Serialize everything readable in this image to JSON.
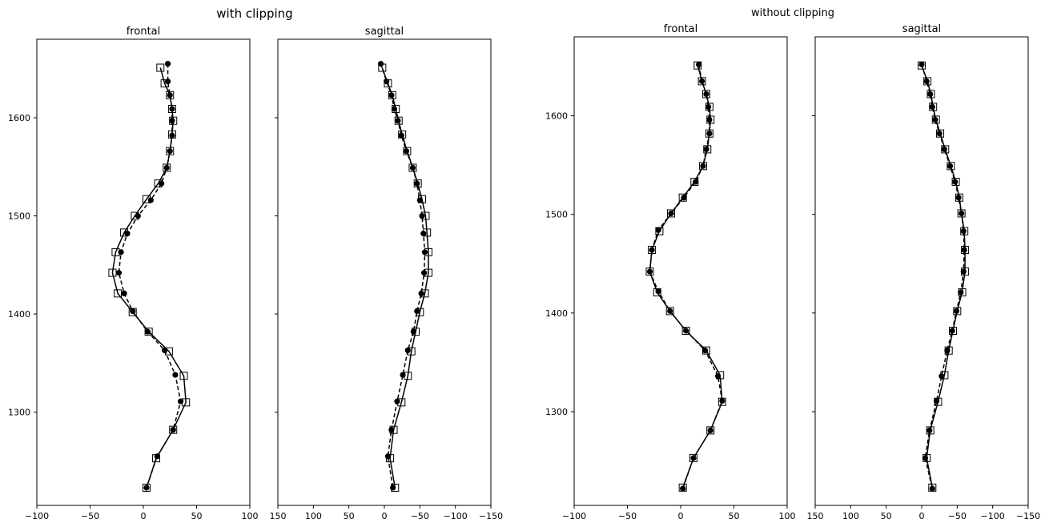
{
  "figure": {
    "groups": [
      {
        "title": "with clipping"
      },
      {
        "title": "without clipping"
      }
    ]
  },
  "chart_data": [
    {
      "type": "line",
      "group": "with clipping",
      "title": "frontal",
      "xlim": [
        -100,
        100
      ],
      "ylim": [
        1205,
        1680
      ],
      "xticks": [
        -100,
        -50,
        0,
        50,
        100
      ],
      "xtick_labels": [
        "−100",
        "−50",
        "0",
        "50",
        "100"
      ],
      "yticks": [
        1300,
        1400,
        1500,
        1600
      ],
      "ytick_labels": [
        "1300",
        "1400",
        "1500",
        "1600"
      ],
      "x_inverted": false,
      "grid": false,
      "legend": "none",
      "series": [
        {
          "marker": "open-square",
          "line": "solid",
          "x": [
            16,
            20,
            25,
            27,
            28,
            27,
            25,
            22,
            14,
            3,
            -8,
            -18,
            -26,
            -29,
            -24,
            -10,
            5,
            24,
            38,
            40,
            28,
            12,
            3
          ],
          "y": [
            1651,
            1635,
            1623,
            1609,
            1597,
            1583,
            1566,
            1549,
            1533,
            1517,
            1500,
            1483,
            1463,
            1442,
            1421,
            1402,
            1382,
            1362,
            1337,
            1310,
            1282,
            1253,
            1223
          ]
        },
        {
          "marker": "filled-circle",
          "line": "dashed",
          "x": [
            23,
            23,
            25,
            27,
            27,
            27,
            25,
            22,
            17,
            7,
            -5,
            -15,
            -21,
            -23,
            -18,
            -10,
            4,
            20,
            30,
            35,
            28,
            13,
            3
          ],
          "y": [
            1655,
            1637,
            1623,
            1609,
            1597,
            1582,
            1566,
            1549,
            1533,
            1516,
            1500,
            1482,
            1463,
            1442,
            1421,
            1403,
            1382,
            1363,
            1338,
            1311,
            1282,
            1255,
            1223
          ]
        }
      ]
    },
    {
      "type": "line",
      "group": "with clipping",
      "title": "sagittal",
      "xlim": [
        150,
        -150
      ],
      "ylim": [
        1205,
        1680
      ],
      "xticks": [
        150,
        100,
        50,
        0,
        -50,
        -100,
        -150
      ],
      "xtick_labels": [
        "150",
        "100",
        "50",
        "0",
        "−50",
        "−100",
        "−150"
      ],
      "yticks": [
        1300,
        1400,
        1500,
        1600
      ],
      "ytick_labels": [
        "",
        "",
        "",
        ""
      ],
      "x_inverted": true,
      "grid": false,
      "legend": "none",
      "series": [
        {
          "marker": "open-square",
          "line": "solid",
          "x": [
            3,
            -5,
            -11,
            -16,
            -20,
            -25,
            -32,
            -40,
            -47,
            -53,
            -58,
            -60,
            -62,
            -62,
            -57,
            -50,
            -44,
            -38,
            -33,
            -24,
            -13,
            -8,
            -15
          ],
          "y": [
            1651,
            1635,
            1623,
            1609,
            1597,
            1583,
            1566,
            1549,
            1533,
            1517,
            1500,
            1483,
            1463,
            1442,
            1421,
            1402,
            1382,
            1362,
            1337,
            1310,
            1282,
            1253,
            1223
          ]
        },
        {
          "marker": "filled-circle",
          "line": "dashed",
          "x": [
            5,
            -3,
            -10,
            -14,
            -19,
            -24,
            -31,
            -40,
            -46,
            -50,
            -53,
            -55,
            -57,
            -56,
            -52,
            -46,
            -41,
            -33,
            -26,
            -18,
            -10,
            -5,
            -12
          ],
          "y": [
            1655,
            1637,
            1623,
            1609,
            1597,
            1582,
            1566,
            1549,
            1533,
            1516,
            1500,
            1482,
            1463,
            1442,
            1421,
            1403,
            1382,
            1363,
            1338,
            1311,
            1282,
            1255,
            1223
          ]
        }
      ]
    },
    {
      "type": "line",
      "group": "without clipping",
      "title": "frontal",
      "xlim": [
        -100,
        100
      ],
      "ylim": [
        1205,
        1680
      ],
      "xticks": [
        -100,
        -50,
        0,
        50,
        100
      ],
      "xtick_labels": [
        "−100",
        "−50",
        "0",
        "50",
        "100"
      ],
      "yticks": [
        1300,
        1400,
        1500,
        1600
      ],
      "ytick_labels": [
        "1300",
        "1400",
        "1500",
        "1600"
      ],
      "x_inverted": false,
      "grid": false,
      "legend": "none",
      "series": [
        {
          "marker": "open-square",
          "line": "solid",
          "x": [
            16,
            20,
            24,
            27,
            28,
            27,
            25,
            21,
            13,
            2,
            -9,
            -20,
            -27,
            -29,
            -22,
            -10,
            5,
            24,
            37,
            39,
            28,
            12,
            2
          ],
          "y": [
            1651,
            1635,
            1622,
            1609,
            1596,
            1582,
            1566,
            1549,
            1533,
            1517,
            1501,
            1483,
            1464,
            1442,
            1421,
            1402,
            1382,
            1362,
            1337,
            1310,
            1281,
            1253,
            1223
          ]
        },
        {
          "marker": "filled-circle",
          "line": "dashed",
          "x": [
            17,
            20,
            24,
            26,
            27,
            27,
            24,
            21,
            14,
            3,
            -9,
            -21,
            -27,
            -29,
            -21,
            -10,
            5,
            23,
            35,
            39,
            28,
            12,
            2
          ],
          "y": [
            1652,
            1635,
            1622,
            1609,
            1596,
            1582,
            1566,
            1549,
            1533,
            1517,
            1501,
            1484,
            1464,
            1442,
            1422,
            1402,
            1382,
            1362,
            1336,
            1311,
            1281,
            1253,
            1222
          ]
        }
      ]
    },
    {
      "type": "line",
      "group": "without clipping",
      "title": "sagittal",
      "xlim": [
        150,
        -150
      ],
      "ylim": [
        1205,
        1680
      ],
      "xticks": [
        150,
        100,
        50,
        0,
        -50,
        -100,
        -150
      ],
      "xtick_labels": [
        "150",
        "100",
        "50",
        "0",
        "−50",
        "−100",
        "−150"
      ],
      "yticks": [
        1300,
        1400,
        1500,
        1600
      ],
      "ytick_labels": [
        "",
        "",
        "",
        ""
      ],
      "x_inverted": true,
      "grid": false,
      "legend": "none",
      "series": [
        {
          "marker": "open-square",
          "line": "solid",
          "x": [
            0,
            -8,
            -13,
            -16,
            -20,
            -26,
            -33,
            -41,
            -48,
            -53,
            -56,
            -60,
            -61,
            -61,
            -57,
            -50,
            -44,
            -38,
            -32,
            -23,
            -12,
            -7,
            -15
          ],
          "y": [
            1651,
            1635,
            1622,
            1609,
            1596,
            1582,
            1566,
            1549,
            1533,
            1517,
            1501,
            1483,
            1464,
            1442,
            1421,
            1402,
            1382,
            1362,
            1337,
            1310,
            1281,
            1253,
            1223
          ]
        },
        {
          "marker": "filled-circle",
          "line": "dashed",
          "x": [
            0,
            -7,
            -12,
            -15,
            -19,
            -25,
            -32,
            -40,
            -47,
            -52,
            -56,
            -59,
            -60,
            -59,
            -55,
            -49,
            -43,
            -36,
            -28,
            -21,
            -11,
            -5,
            -15
          ],
          "y": [
            1652,
            1635,
            1622,
            1609,
            1596,
            1582,
            1566,
            1549,
            1533,
            1517,
            1501,
            1483,
            1464,
            1442,
            1421,
            1402,
            1382,
            1362,
            1336,
            1311,
            1281,
            1253,
            1222
          ]
        }
      ]
    }
  ]
}
